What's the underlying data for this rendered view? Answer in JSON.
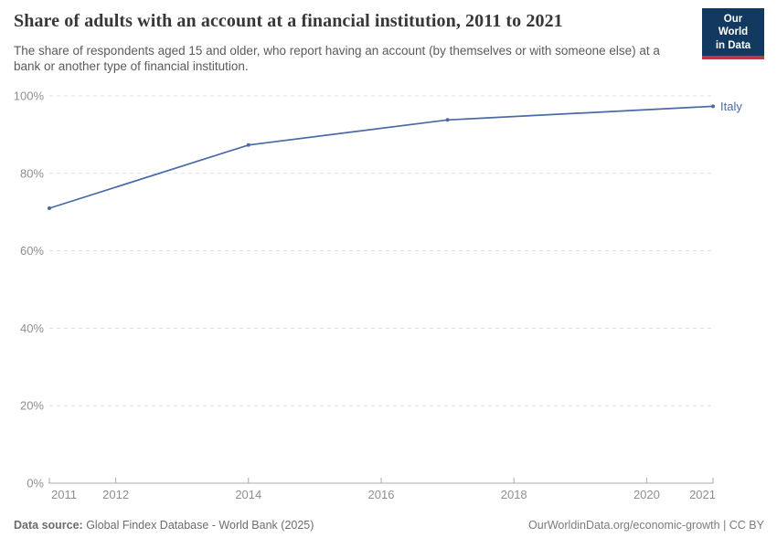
{
  "header": {
    "title": "Share of adults with an account at a financial institution, 2011 to 2021",
    "subtitle": "The share of respondents aged 15 and older, who report having an account (by themselves or with someone else) at a bank or another type of financial institution.",
    "logo_line1": "Our World",
    "logo_line2": "in Data"
  },
  "chart_data": {
    "type": "line",
    "title": "Share of adults with an account at a financial institution, 2011 to 2021",
    "xlabel": "",
    "ylabel": "",
    "xlim": [
      2011,
      2021
    ],
    "ylim": [
      0,
      100
    ],
    "x_ticks": [
      2011,
      2012,
      2014,
      2016,
      2018,
      2020,
      2021
    ],
    "y_ticks": [
      0,
      20,
      40,
      60,
      80,
      100
    ],
    "y_tick_suffix": "%",
    "grid": "horizontal dashed gridlines, solid baseline at 0%",
    "legend": "end-of-line label",
    "series": [
      {
        "name": "Italy",
        "x": [
          2011,
          2014,
          2017,
          2021
        ],
        "values": [
          71,
          87.3,
          93.8,
          97.3
        ]
      }
    ]
  },
  "footer": {
    "source_label": "Data source:",
    "source_text": " Global Findex Database - World Bank (2025)",
    "attribution": "OurWorldinData.org/economic-growth | CC BY"
  },
  "colors": {
    "series_blue": "#4a69a5",
    "gridline": "#dedede",
    "axis_line": "#ababab",
    "axis_text": "#8f8f8f",
    "title_text": "#373737",
    "subtitle_text": "#5b5b5b",
    "logo_bg": "#12395f",
    "logo_stripe": "#ba3a40"
  }
}
